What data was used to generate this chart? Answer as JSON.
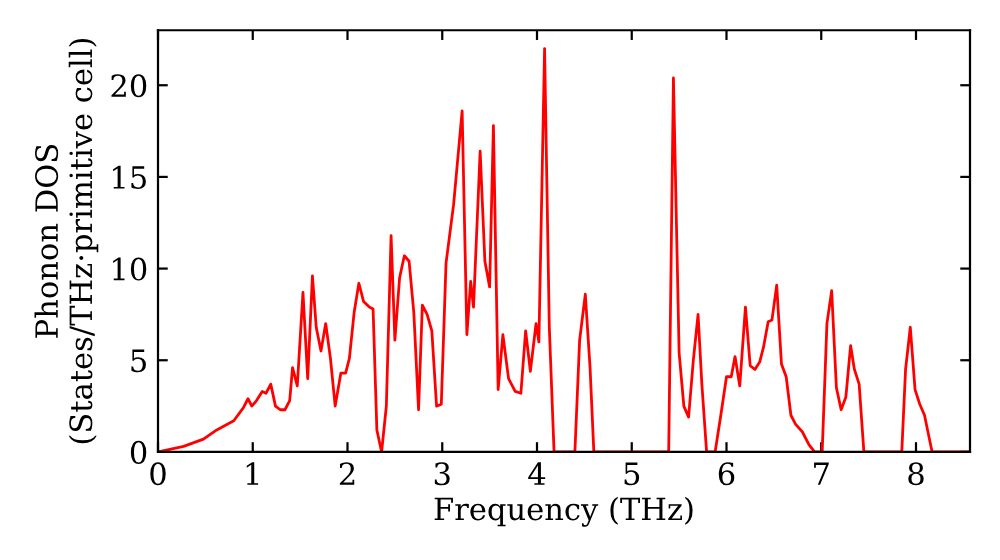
{
  "chart_data": {
    "type": "line",
    "xlabel": "Frequency (THz)",
    "ylabel": "Phonon DOS\n(States/THz·primitive cell)",
    "xlim": [
      0,
      8.57
    ],
    "ylim": [
      0,
      23
    ],
    "xticks": [
      0,
      1,
      2,
      3,
      4,
      5,
      6,
      7,
      8
    ],
    "yticks": [
      0,
      5,
      10,
      15,
      20
    ],
    "grid": false,
    "marker": "none",
    "line_style": "solid",
    "series": [
      {
        "color": "#ff0000",
        "x": [
          0,
          0.27,
          0.48,
          0.62,
          0.8,
          0.9,
          0.95,
          0.99,
          1.04,
          1.1,
          1.14,
          1.19,
          1.24,
          1.29,
          1.34,
          1.39,
          1.42,
          1.47,
          1.53,
          1.58,
          1.63,
          1.67,
          1.72,
          1.77,
          1.82,
          1.87,
          1.93,
          1.98,
          2.02,
          2.07,
          2.12,
          2.17,
          2.23,
          2.27,
          2.31,
          2.36,
          2.41,
          2.46,
          2.5,
          2.55,
          2.6,
          2.65,
          2.7,
          2.75,
          2.79,
          2.84,
          2.89,
          2.94,
          2.99,
          3.04,
          3.12,
          3.21,
          3.26,
          3.3,
          3.33,
          3.4,
          3.45,
          3.5,
          3.54,
          3.59,
          3.64,
          3.7,
          3.77,
          3.83,
          3.88,
          3.93,
          3.99,
          4.02,
          4.08,
          4.13,
          4.18,
          4.4,
          4.45,
          4.51,
          4.56,
          4.6,
          5.39,
          5.44,
          5.5,
          5.55,
          5.6,
          5.65,
          5.7,
          5.74,
          5.79,
          5.88,
          5.94,
          6.0,
          6.05,
          6.09,
          6.14,
          6.2,
          6.25,
          6.3,
          6.35,
          6.39,
          6.44,
          6.48,
          6.53,
          6.58,
          6.63,
          6.68,
          6.73,
          6.8,
          6.87,
          6.93,
          7.01,
          7.06,
          7.11,
          7.16,
          7.21,
          7.26,
          7.31,
          7.35,
          7.4,
          7.45,
          7.85,
          7.89,
          7.94,
          7.99,
          8.04,
          8.09,
          8.17,
          8.55
        ],
        "values": [
          0,
          0.3,
          0.7,
          1.2,
          1.7,
          2.4,
          2.9,
          2.5,
          2.8,
          3.3,
          3.2,
          3.7,
          2.5,
          2.3,
          2.3,
          2.8,
          4.6,
          3.6,
          8.7,
          4.0,
          9.6,
          6.8,
          5.5,
          7.0,
          5.1,
          2.5,
          4.3,
          4.3,
          5.1,
          7.6,
          9.2,
          8.2,
          7.9,
          7.8,
          1.2,
          0,
          2.5,
          11.8,
          6.1,
          9.5,
          10.7,
          10.4,
          7.6,
          2.3,
          8.0,
          7.5,
          6.6,
          2.5,
          2.6,
          10.3,
          13.5,
          18.6,
          6.4,
          9.3,
          7.9,
          16.4,
          10.4,
          9.0,
          17.8,
          3.4,
          6.4,
          4.0,
          3.3,
          3.2,
          6.6,
          4.4,
          7.0,
          6.0,
          22.0,
          6.8,
          0,
          0,
          6.1,
          8.6,
          4.6,
          0,
          0,
          20.4,
          5.4,
          2.5,
          1.9,
          5.0,
          7.5,
          3.7,
          0,
          0,
          2.0,
          4.1,
          4.1,
          5.2,
          3.6,
          7.9,
          4.7,
          4.5,
          4.9,
          5.7,
          7.1,
          7.2,
          9.1,
          4.8,
          4.1,
          2.0,
          1.5,
          1.1,
          0.4,
          0,
          0,
          7.0,
          8.8,
          3.5,
          2.3,
          3.0,
          5.8,
          4.5,
          3.7,
          0,
          0,
          4.5,
          6.8,
          3.4,
          2.6,
          2.0,
          0,
          0
        ]
      }
    ]
  }
}
